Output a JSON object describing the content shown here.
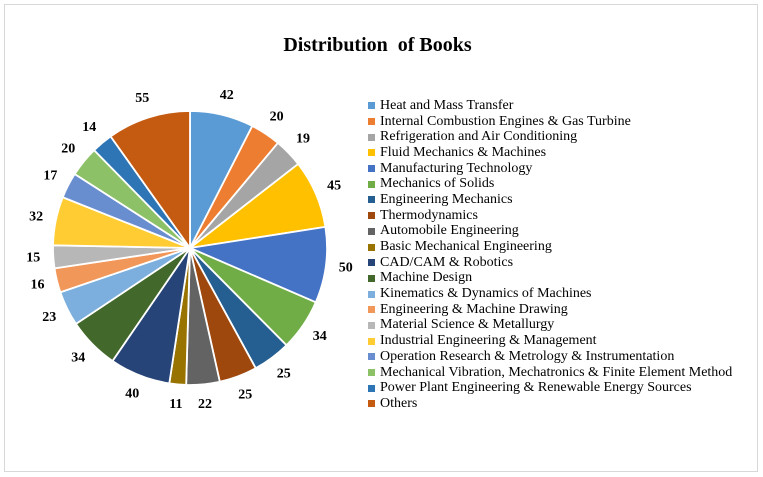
{
  "frame": {
    "border_color": "#d8d8d8",
    "background": "#ffffff"
  },
  "chart_data": {
    "type": "pie",
    "title": "Distribution  of Books",
    "total": 559,
    "start_angle_deg": 0,
    "direction": "clockwise",
    "legend_position": "right",
    "value_labels": "outside-end",
    "series": [
      {
        "name": "Heat and Mass Transfer",
        "value": 42,
        "color": "#5B9BD5"
      },
      {
        "name": "Internal Combustion Engines & Gas Turbine",
        "value": 20,
        "color": "#ED7D31"
      },
      {
        "name": "Refrigeration and Air Conditioning",
        "value": 19,
        "color": "#A5A5A5"
      },
      {
        "name": "Fluid Mechanics & Machines",
        "value": 45,
        "color": "#FFC000"
      },
      {
        "name": "Manufacturing Technology",
        "value": 50,
        "color": "#4472C4"
      },
      {
        "name": "Mechanics of Solids",
        "value": 34,
        "color": "#70AD47"
      },
      {
        "name": "Engineering Mechanics",
        "value": 25,
        "color": "#255E91"
      },
      {
        "name": "Thermodynamics",
        "value": 25,
        "color": "#9E480E"
      },
      {
        "name": "Automobile Engineering",
        "value": 22,
        "color": "#636363"
      },
      {
        "name": "Basic Mechanical Engineering",
        "value": 11,
        "color": "#997300"
      },
      {
        "name": "CAD/CAM & Robotics",
        "value": 40,
        "color": "#264478"
      },
      {
        "name": "Machine Design",
        "value": 34,
        "color": "#43682B"
      },
      {
        "name": "Kinematics & Dynamics of Machines",
        "value": 23,
        "color": "#7CAFDD"
      },
      {
        "name": "Engineering & Machine Drawing",
        "value": 16,
        "color": "#F1975A"
      },
      {
        "name": "Material Science & Metallurgy",
        "value": 15,
        "color": "#B7B7B7"
      },
      {
        "name": "Industrial Engineering & Management",
        "value": 32,
        "color": "#FFCD33"
      },
      {
        "name": "Operation Research & Metrology & Instrumentation",
        "value": 17,
        "color": "#698ED0"
      },
      {
        "name": "Mechanical Vibration, Mechatronics & Finite Element Method",
        "value": 20,
        "color": "#8CC168"
      },
      {
        "name": "Power Plant Engineering & Renewable Energy Sources",
        "value": 14,
        "color": "#2E75B6"
      },
      {
        "name": "Others",
        "value": 55,
        "color": "#C55A11"
      }
    ]
  }
}
